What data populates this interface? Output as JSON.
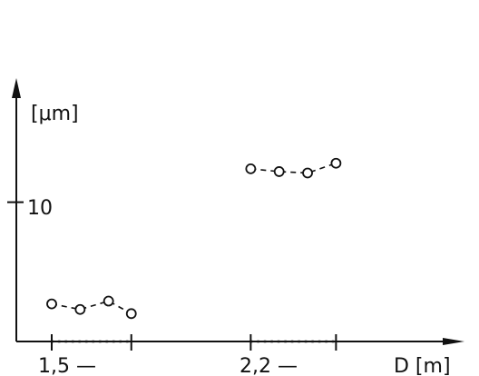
{
  "chart_data": {
    "type": "scatter",
    "ylabel": "[μm]",
    "xlabel": "D [m]",
    "y_ticks": [
      {
        "value": 10,
        "label": "10"
      }
    ],
    "x_labels": [
      {
        "label": "1,5 —",
        "x": 1.5
      },
      {
        "label": "2,2 —",
        "x": 2.2
      }
    ],
    "ylim": [
      0,
      18
    ],
    "xlim": [
      1.5,
      2.77
    ],
    "series": [
      {
        "x": [
          1.5,
          1.6,
          1.7,
          1.78
        ],
        "values": [
          2.7,
          2.3,
          2.9,
          2.0
        ]
      },
      {
        "x": [
          2.2,
          2.3,
          2.4,
          2.5
        ],
        "values": [
          12.4,
          12.2,
          12.1,
          12.8
        ]
      }
    ],
    "dotted_segments": [
      [
        1.5,
        1.78
      ],
      [
        2.2,
        2.5
      ]
    ],
    "colors": {
      "ink": "#111111",
      "marker_fill": "#ffffff"
    }
  }
}
